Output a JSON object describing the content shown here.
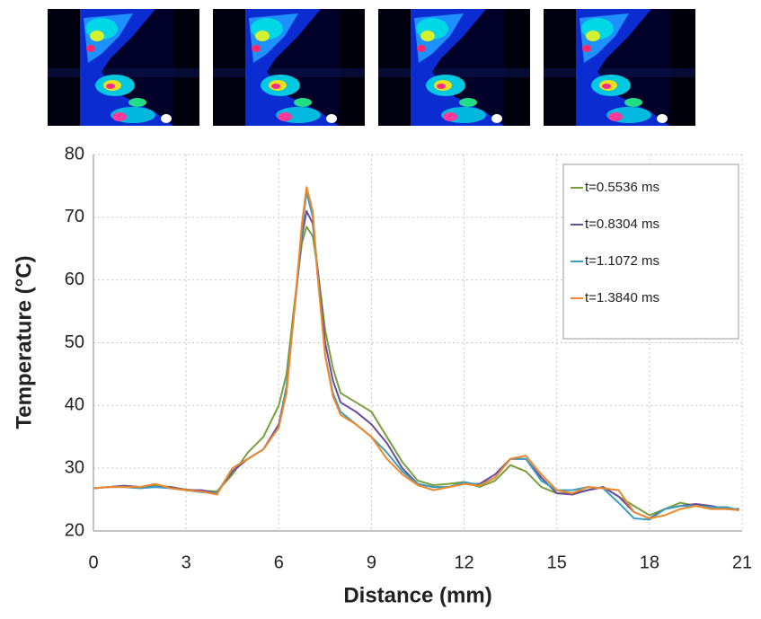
{
  "chart_data": {
    "type": "line",
    "x_label": "Distance (mm)",
    "y_label": "Temperature (°C)",
    "x": [
      0,
      0.5,
      1,
      1.5,
      2,
      2.5,
      3,
      3.5,
      4,
      4.5,
      5,
      5.5,
      6,
      6.25,
      6.5,
      6.75,
      6.9,
      7.1,
      7.25,
      7.5,
      7.75,
      8,
      8.5,
      9,
      9.5,
      10,
      10.5,
      11,
      11.5,
      12,
      12.5,
      13,
      13.5,
      14,
      14.5,
      15,
      15.5,
      16,
      16.5,
      17,
      17.5,
      18,
      18.5,
      19,
      19.5,
      20,
      20.5,
      20.9
    ],
    "series": [
      {
        "name": "t=0.5536 ms",
        "color": "#77a03c",
        "values": [
          26.8,
          27,
          27.2,
          27,
          27.3,
          27,
          26.6,
          26.4,
          26.3,
          29,
          32.5,
          35,
          40,
          45,
          56,
          66,
          68.5,
          67,
          62,
          52,
          46,
          42,
          40.5,
          39,
          35,
          31,
          28,
          27.3,
          27.5,
          27.8,
          27,
          28,
          30.5,
          29.5,
          27,
          26,
          26,
          26.5,
          27,
          25.5,
          24,
          22.5,
          23.5,
          24.5,
          24,
          23.8,
          23.5,
          23.5
        ]
      },
      {
        "name": "t=0.8304 ms",
        "color": "#6a4c9c",
        "values": [
          26.8,
          27,
          27.2,
          27,
          27,
          27,
          26.5,
          26.5,
          26,
          29.5,
          31.5,
          33,
          37,
          43,
          55,
          67,
          71,
          69,
          62,
          50,
          44,
          40.5,
          39,
          37,
          34,
          30,
          27.5,
          27,
          27,
          27.5,
          27.5,
          29,
          31.5,
          31.5,
          28.5,
          26,
          25.8,
          26.5,
          27,
          25.5,
          23,
          22,
          23.5,
          24,
          24.3,
          24,
          23.5,
          23.5
        ]
      },
      {
        "name": "t=1.1072 ms",
        "color": "#3a9fbf",
        "values": [
          26.8,
          27,
          27,
          26.8,
          27,
          26.8,
          26.5,
          26.2,
          26,
          30,
          31.5,
          33,
          36.5,
          43,
          55,
          68,
          74,
          70,
          61,
          48,
          42,
          39,
          37,
          35,
          32.5,
          29.5,
          27.5,
          27,
          27,
          27.8,
          27.3,
          28.5,
          31.5,
          31.5,
          28,
          26.5,
          26.5,
          27,
          26.8,
          24.5,
          22,
          21.8,
          23.5,
          24,
          24,
          23.8,
          23.8,
          23.3
        ]
      },
      {
        "name": "t=1.3840 ms",
        "color": "#f0882a",
        "values": [
          26.8,
          27,
          27,
          27,
          27.5,
          26.8,
          26.5,
          26.3,
          25.8,
          30,
          31.5,
          33,
          36.5,
          42,
          55,
          69,
          74.8,
          71,
          61,
          48,
          41.5,
          38.5,
          37,
          35,
          31.5,
          29,
          27.3,
          26.5,
          27,
          27.5,
          27.2,
          28.5,
          31.5,
          32,
          29,
          26.5,
          26,
          27,
          26.8,
          26.5,
          23,
          22,
          22.5,
          23.5,
          24,
          23.5,
          23.5,
          23.3
        ]
      }
    ],
    "xlim": [
      0,
      21
    ],
    "xticks": [
      0,
      3,
      6,
      9,
      12,
      15,
      18,
      21
    ],
    "ylim": [
      20,
      80
    ],
    "yticks": [
      20,
      30,
      40,
      50,
      60,
      70,
      80
    ],
    "grid": true,
    "legend": "upper right"
  }
}
